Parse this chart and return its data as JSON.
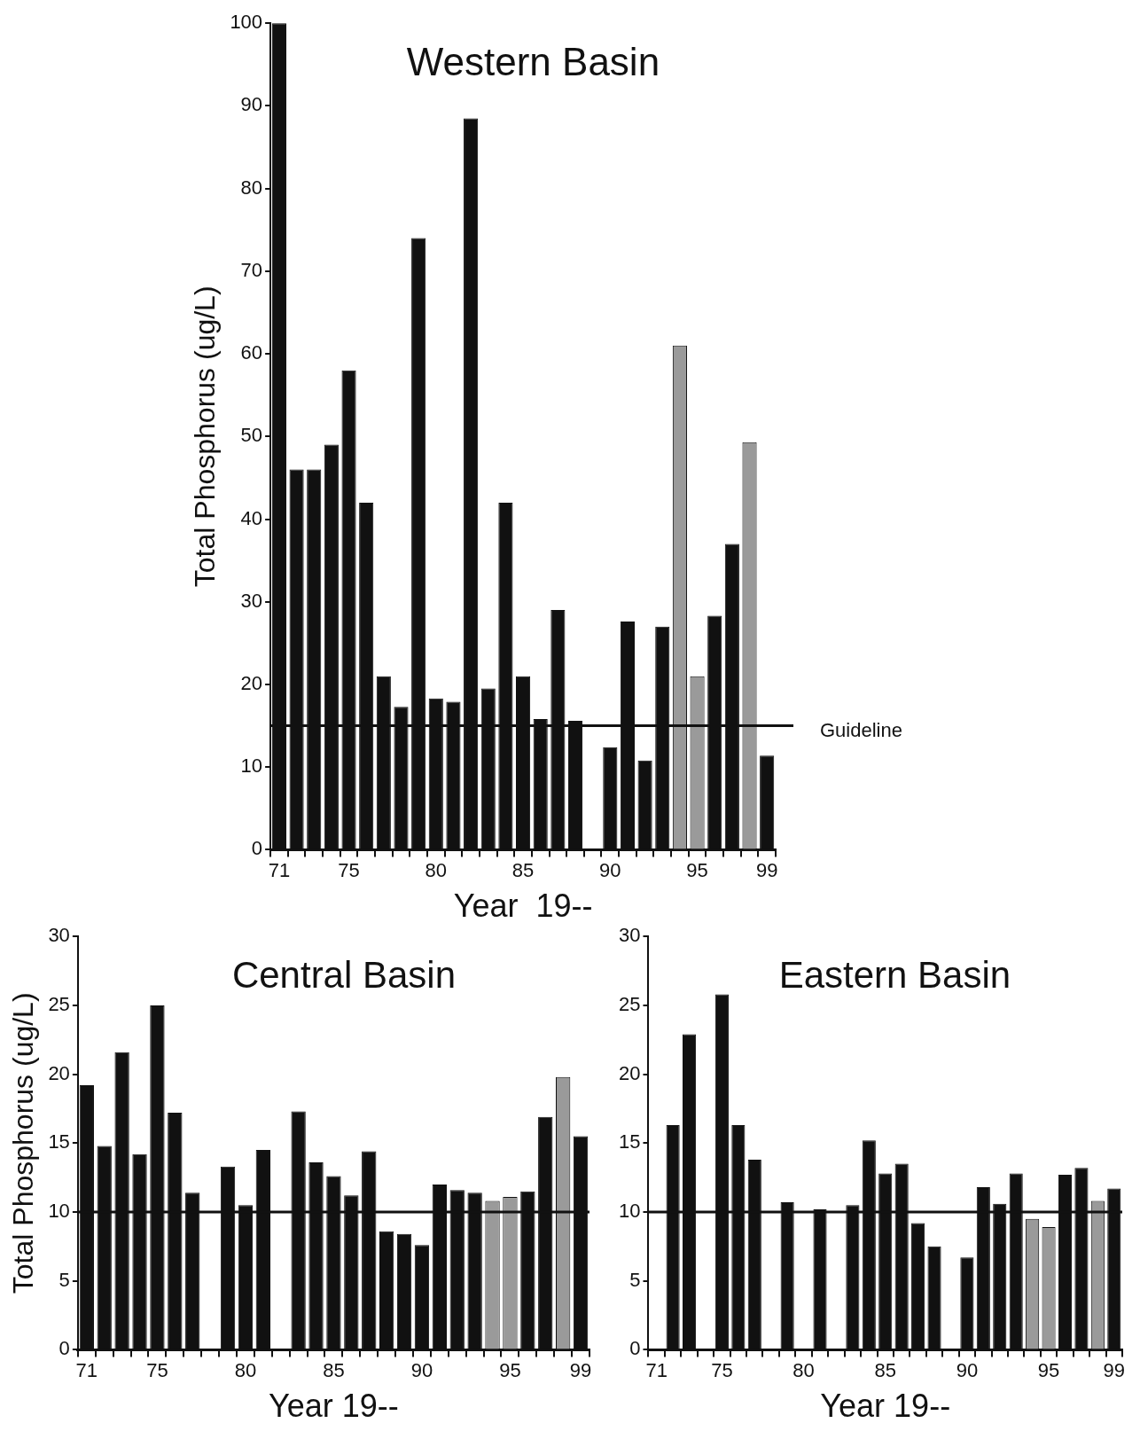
{
  "chart_data": [
    {
      "type": "bar",
      "title": "Western Basin",
      "xlabel": "Year  19--",
      "ylabel": "Total Phosphorus (ug/L)",
      "categories": [
        "71",
        null,
        null,
        null,
        "75",
        null,
        null,
        null,
        null,
        "80",
        null,
        null,
        null,
        null,
        "85",
        null,
        null,
        null,
        null,
        "90",
        null,
        null,
        null,
        null,
        "95",
        null,
        null,
        null,
        "99"
      ],
      "values": [
        100,
        46,
        46,
        49,
        58,
        42,
        21,
        17.3,
        74,
        18.3,
        17.9,
        88.5,
        19.5,
        42,
        21,
        15.8,
        29,
        15.6,
        null,
        12.4,
        27.6,
        10.8,
        27,
        61,
        21,
        28.3,
        37,
        49.3,
        11.4
      ],
      "colors": [
        "#111111",
        "#111111",
        "#111111",
        "#111111",
        "#111111",
        "#111111",
        "#111111",
        "#111111",
        "#111111",
        "#111111",
        "#111111",
        "#111111",
        "#111111",
        "#111111",
        "#111111",
        "#111111",
        "#111111",
        "#111111",
        "#111111",
        "#111111",
        "#111111",
        "#111111",
        "#111111",
        "#9a9a9a",
        "#9a9a9a",
        "#111111",
        "#111111",
        "#9a9a9a",
        "#111111"
      ],
      "ylim": [
        0,
        100
      ],
      "yticks": [
        0,
        10,
        20,
        30,
        40,
        50,
        60,
        70,
        80,
        90,
        100
      ],
      "ref_lines": [
        {
          "axis": "y",
          "value": 15,
          "label": "Guideline",
          "color": "#111111"
        }
      ],
      "grid": false,
      "legend": false
    },
    {
      "type": "bar",
      "title": "Central Basin",
      "xlabel": "Year 19--",
      "ylabel": "Total Phosphorus (ug/L)",
      "categories": [
        "71",
        null,
        null,
        null,
        "75",
        null,
        null,
        null,
        null,
        "80",
        null,
        null,
        null,
        null,
        "85",
        null,
        null,
        null,
        null,
        "90",
        null,
        null,
        null,
        null,
        "95",
        null,
        null,
        null,
        "99"
      ],
      "values": [
        19.2,
        14.8,
        21.6,
        14.2,
        25,
        17.2,
        11.4,
        null,
        13.3,
        10.5,
        14.5,
        null,
        17.3,
        13.6,
        12.6,
        11.2,
        14.4,
        8.6,
        8.4,
        7.6,
        12,
        11.6,
        11.4,
        10.8,
        11.1,
        11.5,
        16.9,
        19.8,
        15.5
      ],
      "colors": [
        "#111111",
        "#111111",
        "#111111",
        "#111111",
        "#111111",
        "#111111",
        "#111111",
        "#111111",
        "#111111",
        "#111111",
        "#111111",
        "#111111",
        "#111111",
        "#111111",
        "#111111",
        "#111111",
        "#111111",
        "#111111",
        "#111111",
        "#111111",
        "#111111",
        "#111111",
        "#111111",
        "#9a9a9a",
        "#9a9a9a",
        "#111111",
        "#111111",
        "#9a9a9a",
        "#111111"
      ],
      "ylim": [
        0,
        30
      ],
      "yticks": [
        0,
        5,
        10,
        15,
        20,
        25,
        30
      ],
      "ref_lines": [
        {
          "axis": "y",
          "value": 10,
          "color": "#111111"
        }
      ],
      "grid": false,
      "legend": false
    },
    {
      "type": "bar",
      "title": "Eastern Basin",
      "xlabel": "Year 19--",
      "categories": [
        "71",
        null,
        null,
        null,
        "75",
        null,
        null,
        null,
        null,
        "80",
        null,
        null,
        null,
        null,
        "85",
        null,
        null,
        null,
        null,
        "90",
        null,
        null,
        null,
        null,
        "95",
        null,
        null,
        null,
        "99"
      ],
      "values": [
        null,
        16.3,
        22.9,
        null,
        25.8,
        16.3,
        13.8,
        null,
        10.7,
        null,
        10.2,
        null,
        10.5,
        15.2,
        12.8,
        13.5,
        9.2,
        7.5,
        null,
        6.7,
        11.8,
        10.6,
        12.8,
        9.5,
        8.9,
        12.7,
        13.2,
        10.8,
        11.7
      ],
      "colors": [
        "#111111",
        "#111111",
        "#111111",
        "#111111",
        "#111111",
        "#111111",
        "#111111",
        "#111111",
        "#111111",
        "#111111",
        "#111111",
        "#111111",
        "#111111",
        "#111111",
        "#111111",
        "#111111",
        "#111111",
        "#111111",
        "#111111",
        "#111111",
        "#111111",
        "#111111",
        "#111111",
        "#9a9a9a",
        "#9a9a9a",
        "#111111",
        "#111111",
        "#9a9a9a",
        "#111111"
      ],
      "ylim": [
        0,
        30
      ],
      "yticks": [
        0,
        5,
        10,
        15,
        20,
        25,
        30
      ],
      "ref_lines": [
        {
          "axis": "y",
          "value": 10,
          "color": "#111111"
        }
      ],
      "grid": false,
      "legend": false
    }
  ]
}
